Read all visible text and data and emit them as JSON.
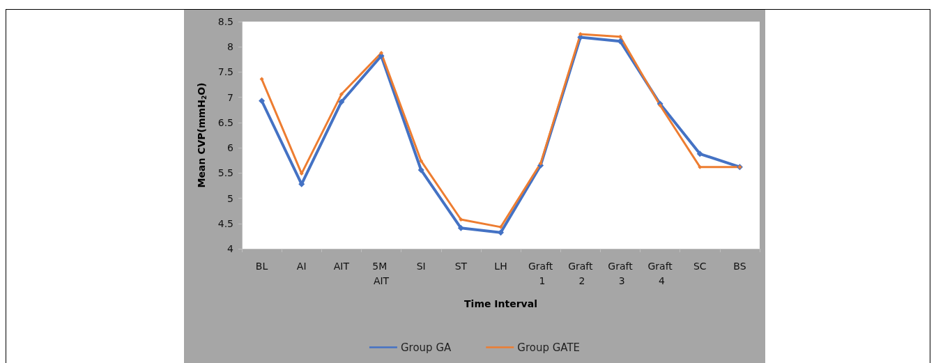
{
  "chart_data": {
    "type": "line",
    "xlabel": "Time Interval",
    "ylabel": "Mean CVP(mmH$_{2}$O)",
    "categories": [
      "BL",
      "AI",
      "AIT",
      "5M AIT",
      "SI",
      "ST",
      "LH",
      "Graft 1",
      "Graft 2",
      "Graft 3",
      "Graft 4",
      "SC",
      "BS"
    ],
    "series": [
      {
        "name": "Group GA",
        "color": "#4472c4",
        "values": [
          6.93,
          5.28,
          6.91,
          7.82,
          5.56,
          4.41,
          4.32,
          5.65,
          8.19,
          8.11,
          6.87,
          5.88,
          5.62
        ]
      },
      {
        "name": "Group GATE",
        "color": "#ed7d31",
        "values": [
          7.36,
          5.49,
          7.06,
          7.88,
          5.74,
          4.58,
          4.43,
          5.69,
          8.25,
          8.2,
          6.84,
          5.62,
          5.62
        ]
      }
    ],
    "ylim": [
      4,
      8.5
    ],
    "yticks": [
      4,
      4.5,
      5,
      5.5,
      6,
      6.5,
      7,
      7.5,
      8,
      8.5
    ],
    "grid": false,
    "legend": "bottom",
    "marker": "diamond",
    "line_style": "solid"
  }
}
